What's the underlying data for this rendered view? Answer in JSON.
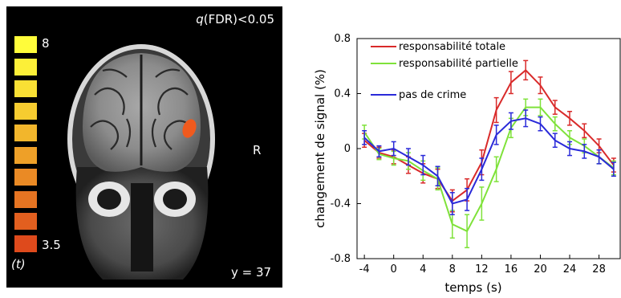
{
  "brain_panel": {
    "threshold_label": "(FDR)<0.05",
    "threshold_q": "q",
    "side_label": "R",
    "slice_label": "y = 37",
    "colorbar": {
      "max_label": "8",
      "min_label": "3.5",
      "stat_label": "(t)",
      "colors": [
        "#fffc3a",
        "#fcef38",
        "#f9e034",
        "#f6cc30",
        "#f2b62c",
        "#eea028",
        "#ea8a25",
        "#e67422",
        "#e25f1f",
        "#de4a1c"
      ]
    }
  },
  "chart_data": {
    "type": "line",
    "xlabel": "temps (s)",
    "ylabel": "changement de signal (%)",
    "xlim": [
      -5,
      31
    ],
    "ylim": [
      -0.8,
      0.8
    ],
    "xticks": [
      "-4",
      "0",
      "4",
      "8",
      "12",
      "16",
      "20",
      "24",
      "28"
    ],
    "xtick_values": [
      -4,
      0,
      4,
      8,
      12,
      16,
      20,
      24,
      28
    ],
    "yticks": [
      "-0.8",
      "-0.4",
      "0",
      "0.4",
      "0.8"
    ],
    "ytick_values": [
      -0.8,
      -0.4,
      0,
      0.4,
      0.8
    ],
    "x": [
      -4,
      -2,
      0,
      2,
      4,
      6,
      8,
      10,
      12,
      14,
      16,
      18,
      20,
      22,
      24,
      26,
      28,
      30
    ],
    "legend_position": "top-left",
    "series": [
      {
        "name": "responsabilité totale",
        "color": "#d92a2a",
        "values": [
          0.06,
          -0.03,
          -0.06,
          -0.12,
          -0.18,
          -0.22,
          -0.38,
          -0.3,
          -0.1,
          0.28,
          0.48,
          0.57,
          0.46,
          0.3,
          0.22,
          0.13,
          0.02,
          -0.12
        ],
        "errors": [
          0.05,
          0.04,
          0.05,
          0.06,
          0.07,
          0.07,
          0.08,
          0.08,
          0.09,
          0.09,
          0.08,
          0.07,
          0.06,
          0.05,
          0.05,
          0.05,
          0.05,
          0.05
        ]
      },
      {
        "name": "responsabilité partielle",
        "color": "#7fe23a",
        "values": [
          0.12,
          -0.04,
          -0.07,
          -0.09,
          -0.16,
          -0.22,
          -0.55,
          -0.6,
          -0.4,
          -0.15,
          0.15,
          0.3,
          0.3,
          0.18,
          0.08,
          0.02,
          -0.06,
          -0.14
        ],
        "errors": [
          0.05,
          0.04,
          0.05,
          0.06,
          0.07,
          0.08,
          0.1,
          0.12,
          0.12,
          0.09,
          0.07,
          0.06,
          0.06,
          0.05,
          0.05,
          0.05,
          0.05,
          0.05
        ]
      },
      {
        "name": "pas de crime",
        "color": "#2a2ad9",
        "values": [
          0.08,
          -0.02,
          0.0,
          -0.06,
          -0.12,
          -0.2,
          -0.4,
          -0.37,
          -0.15,
          0.1,
          0.2,
          0.22,
          0.18,
          0.06,
          0.0,
          -0.02,
          -0.06,
          -0.15
        ],
        "errors": [
          0.05,
          0.04,
          0.05,
          0.06,
          0.07,
          0.07,
          0.08,
          0.08,
          0.08,
          0.07,
          0.06,
          0.06,
          0.05,
          0.05,
          0.05,
          0.05,
          0.05,
          0.05
        ]
      }
    ]
  }
}
